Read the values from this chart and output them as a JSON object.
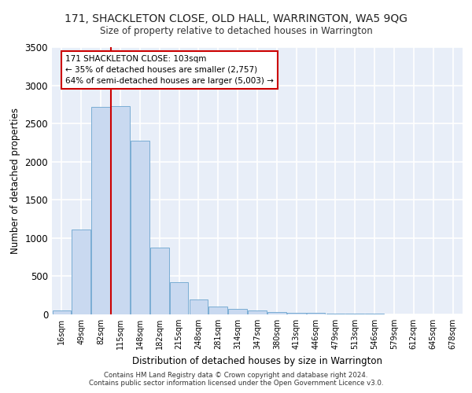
{
  "title": "171, SHACKLETON CLOSE, OLD HALL, WARRINGTON, WA5 9QG",
  "subtitle": "Size of property relative to detached houses in Warrington",
  "xlabel": "Distribution of detached houses by size in Warrington",
  "ylabel": "Number of detached properties",
  "bar_color": "#c9d9f0",
  "bar_edge_color": "#7aadd4",
  "background_color": "#e8eef8",
  "grid_color": "#ffffff",
  "categories": [
    "16sqm",
    "49sqm",
    "82sqm",
    "115sqm",
    "148sqm",
    "182sqm",
    "215sqm",
    "248sqm",
    "281sqm",
    "314sqm",
    "347sqm",
    "380sqm",
    "413sqm",
    "446sqm",
    "479sqm",
    "513sqm",
    "546sqm",
    "579sqm",
    "612sqm",
    "645sqm",
    "678sqm"
  ],
  "values": [
    50,
    1110,
    2720,
    2730,
    2280,
    870,
    420,
    200,
    100,
    70,
    50,
    30,
    25,
    20,
    15,
    10,
    8,
    5,
    3,
    2,
    1
  ],
  "ylim": [
    0,
    3500
  ],
  "yticks": [
    0,
    500,
    1000,
    1500,
    2000,
    2500,
    3000,
    3500
  ],
  "vline_x_index": 2,
  "annotation_text": "171 SHACKLETON CLOSE: 103sqm\n← 35% of detached houses are smaller (2,757)\n64% of semi-detached houses are larger (5,003) →",
  "annotation_box_color": "#ffffff",
  "annotation_border_color": "#cc0000",
  "vline_color": "#cc0000",
  "footer_line1": "Contains HM Land Registry data © Crown copyright and database right 2024.",
  "footer_line2": "Contains public sector information licensed under the Open Government Licence v3.0."
}
